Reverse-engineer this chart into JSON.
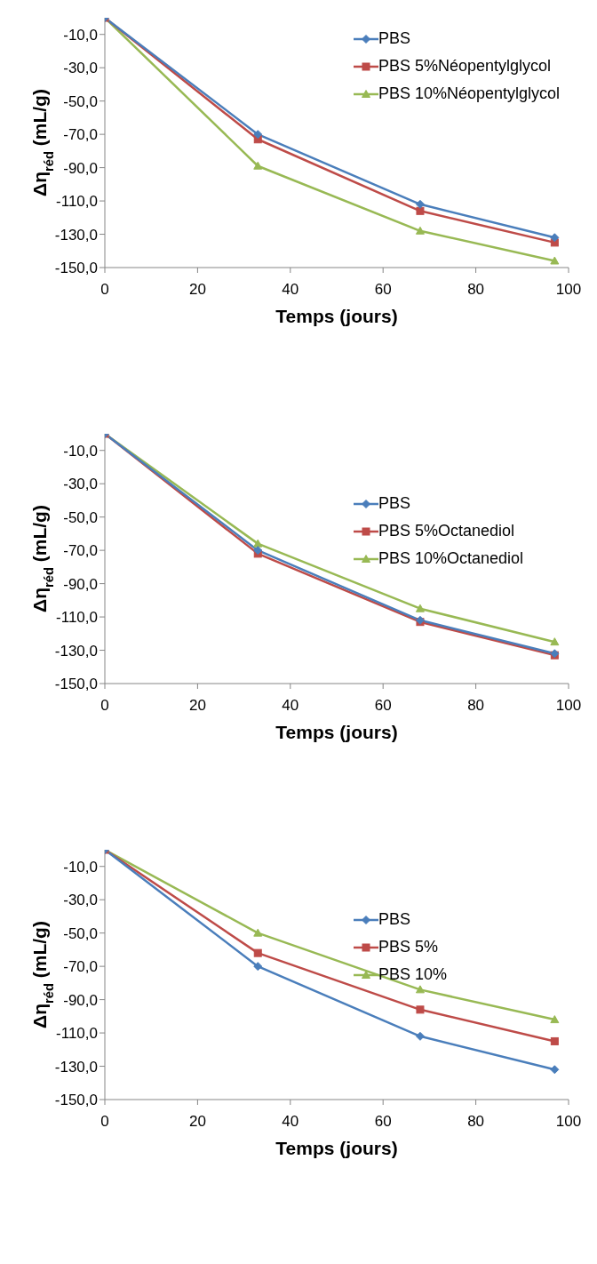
{
  "chart_data": [
    {
      "type": "line",
      "xlabel": "Temps (jours)",
      "ylabel": "Δη$_{réd}$ (mL/g)",
      "x": [
        0,
        33,
        68,
        97
      ],
      "xlim": [
        0,
        100
      ],
      "xticks": [
        0,
        20,
        40,
        60,
        80,
        100
      ],
      "ylim": [
        -150,
        0
      ],
      "yticks": [
        {
          "value": -150,
          "label": "-150,0"
        },
        {
          "value": -130,
          "label": "-130,0"
        },
        {
          "value": -110,
          "label": "-110,0"
        },
        {
          "value": -90,
          "label": "-90,0"
        },
        {
          "value": -70,
          "label": "-70,0"
        },
        {
          "value": -50,
          "label": "-50,0"
        },
        {
          "value": -30,
          "label": "-30,0"
        },
        {
          "value": -10,
          "label": "-10,0"
        }
      ],
      "legend": "top right",
      "series": [
        {
          "name": "PBS",
          "color": "#4a7ebb",
          "marker": "diamond",
          "values": [
            0,
            -70,
            -112,
            -132
          ]
        },
        {
          "name": "PBS 5%Néopentylglycol",
          "color": "#be4b48",
          "marker": "square",
          "values": [
            0,
            -73,
            -116,
            -135
          ]
        },
        {
          "name": "PBS 10%Néopentylglycol",
          "color": "#98b954",
          "marker": "triangle",
          "values": [
            0,
            -89,
            -128,
            -146
          ]
        }
      ]
    },
    {
      "type": "line",
      "xlabel": "Temps (jours)",
      "ylabel": "Δη$_{réd}$ (mL/g)",
      "x": [
        0,
        33,
        68,
        97
      ],
      "xlim": [
        0,
        100
      ],
      "xticks": [
        0,
        20,
        40,
        60,
        80,
        100
      ],
      "ylim": [
        -150,
        0
      ],
      "yticks": [
        {
          "value": -150,
          "label": "-150,0"
        },
        {
          "value": -130,
          "label": "-130,0"
        },
        {
          "value": -110,
          "label": "-110,0"
        },
        {
          "value": -90,
          "label": "-90,0"
        },
        {
          "value": -70,
          "label": "-70,0"
        },
        {
          "value": -50,
          "label": "-50,0"
        },
        {
          "value": -30,
          "label": "-30,0"
        },
        {
          "value": -10,
          "label": "-10,0"
        }
      ],
      "legend": "right",
      "series": [
        {
          "name": "PBS",
          "color": "#4a7ebb",
          "marker": "diamond",
          "values": [
            0,
            -70,
            -112,
            -132
          ]
        },
        {
          "name": "PBS 5%Octanediol",
          "color": "#be4b48",
          "marker": "square",
          "values": [
            0,
            -72,
            -113,
            -133
          ]
        },
        {
          "name": "PBS 10%Octanediol",
          "color": "#98b954",
          "marker": "triangle",
          "values": [
            0,
            -66,
            -105,
            -125
          ]
        }
      ]
    },
    {
      "type": "line",
      "xlabel": "Temps (jours)",
      "ylabel": "Δη$_{réd}$ (mL/g)",
      "x": [
        0,
        33,
        68,
        97
      ],
      "xlim": [
        0,
        100
      ],
      "xticks": [
        0,
        20,
        40,
        60,
        80,
        100
      ],
      "ylim": [
        -150,
        0
      ],
      "yticks": [
        {
          "value": -150,
          "label": "-150,0"
        },
        {
          "value": -130,
          "label": "-130,0"
        },
        {
          "value": -110,
          "label": "-110,0"
        },
        {
          "value": -90,
          "label": "-90,0"
        },
        {
          "value": -70,
          "label": "-70,0"
        },
        {
          "value": -50,
          "label": "-50,0"
        },
        {
          "value": -30,
          "label": "-30,0"
        },
        {
          "value": -10,
          "label": "-10,0"
        }
      ],
      "legend": "right",
      "series": [
        {
          "name": "PBS",
          "color": "#4a7ebb",
          "marker": "diamond",
          "values": [
            0,
            -70,
            -112,
            -132
          ]
        },
        {
          "name": "PBS 5%",
          "color": "#be4b48",
          "marker": "square",
          "values": [
            0,
            -62,
            -96,
            -115
          ]
        },
        {
          "name": "PBS 10%",
          "color": "#98b954",
          "marker": "triangle",
          "values": [
            0,
            -50,
            -84,
            -102
          ]
        }
      ]
    }
  ]
}
